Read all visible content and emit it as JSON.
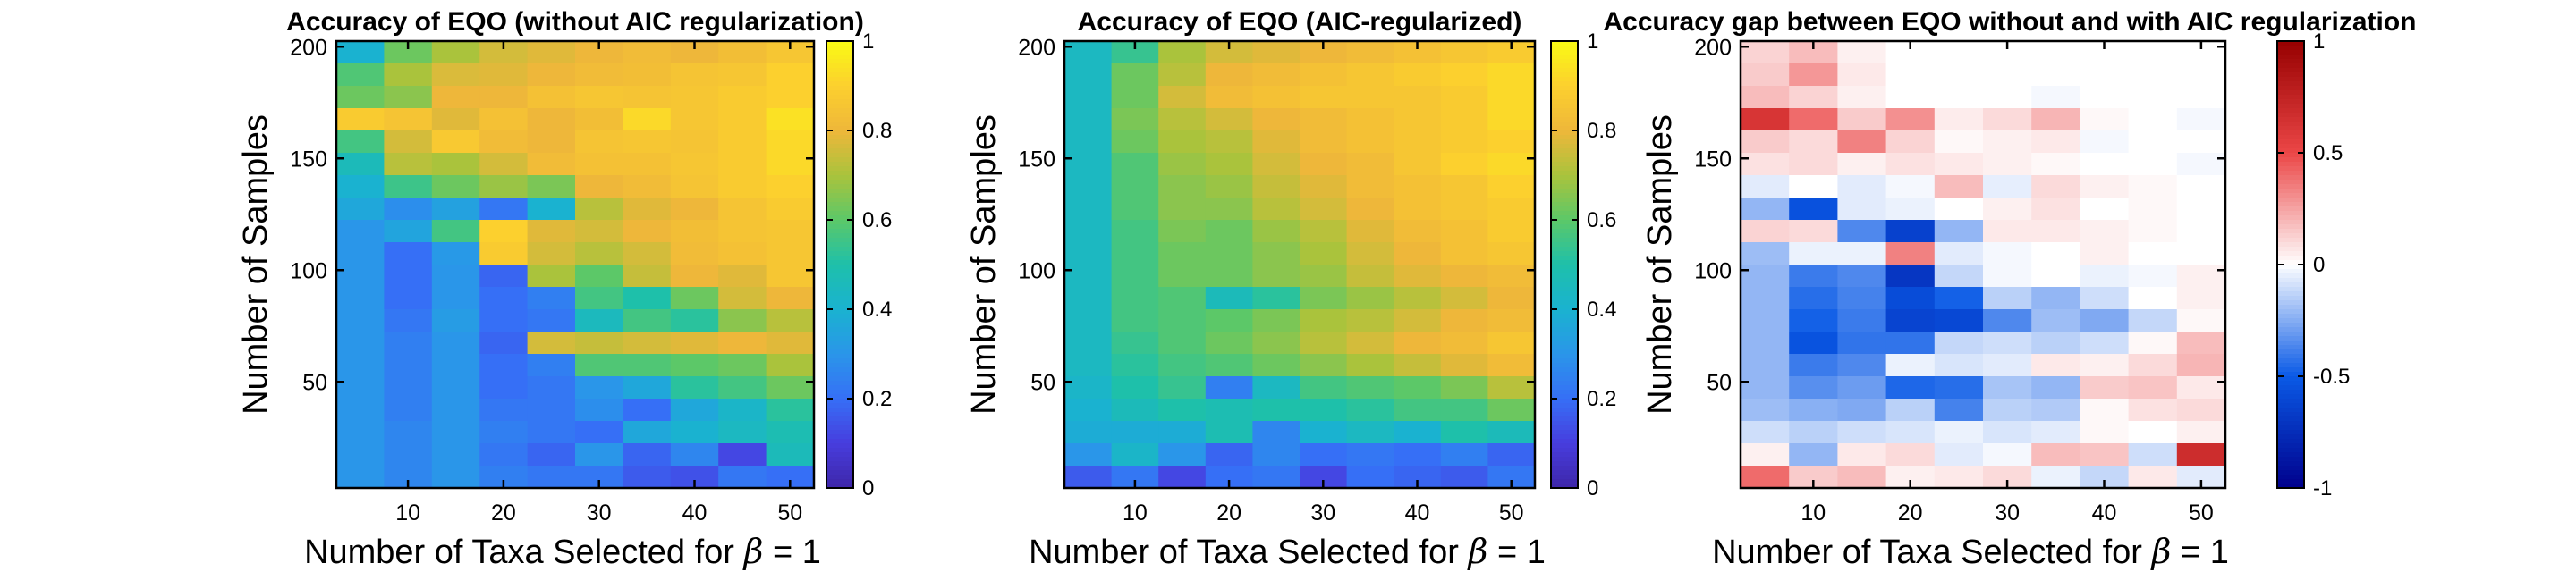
{
  "chart_data": [
    {
      "type": "heatmap",
      "title": "Accuracy of EQO (without AIC regularization)",
      "xlabel": "Number of Taxa Selected for",
      "xlabel_symbol": "β",
      "xlabel_suffix": " = 1",
      "ylabel": "Number of Samples",
      "x_ticks": [
        "10",
        "20",
        "30",
        "40",
        "50"
      ],
      "y_ticks": [
        "50",
        "100",
        "150",
        "200"
      ],
      "colorbar_ticks": [
        "0",
        "0.2",
        "0.4",
        "0.6",
        "0.8",
        "1"
      ],
      "colormap": "parula",
      "clim": [
        0,
        1
      ],
      "values": [
        [
          0.4,
          0.62,
          0.7,
          0.76,
          0.78,
          0.8,
          0.82,
          0.8,
          0.83,
          0.86
        ],
        [
          0.58,
          0.7,
          0.77,
          0.78,
          0.8,
          0.82,
          0.83,
          0.85,
          0.86,
          0.9
        ],
        [
          0.62,
          0.66,
          0.8,
          0.8,
          0.84,
          0.86,
          0.85,
          0.86,
          0.88,
          0.9
        ],
        [
          0.88,
          0.85,
          0.78,
          0.84,
          0.8,
          0.83,
          0.92,
          0.86,
          0.88,
          0.94
        ],
        [
          0.56,
          0.76,
          0.87,
          0.82,
          0.8,
          0.85,
          0.86,
          0.85,
          0.88,
          0.92
        ],
        [
          0.46,
          0.72,
          0.7,
          0.76,
          0.82,
          0.84,
          0.84,
          0.86,
          0.88,
          0.92
        ],
        [
          0.4,
          0.55,
          0.62,
          0.68,
          0.64,
          0.8,
          0.82,
          0.85,
          0.88,
          0.9
        ],
        [
          0.36,
          0.28,
          0.34,
          0.22,
          0.4,
          0.72,
          0.78,
          0.8,
          0.85,
          0.88
        ],
        [
          0.3,
          0.35,
          0.56,
          0.9,
          0.78,
          0.76,
          0.8,
          0.83,
          0.85,
          0.86
        ],
        [
          0.3,
          0.2,
          0.31,
          0.88,
          0.76,
          0.72,
          0.76,
          0.82,
          0.84,
          0.86
        ],
        [
          0.3,
          0.2,
          0.3,
          0.18,
          0.7,
          0.6,
          0.74,
          0.8,
          0.78,
          0.86
        ],
        [
          0.3,
          0.2,
          0.3,
          0.2,
          0.24,
          0.56,
          0.5,
          0.62,
          0.76,
          0.8
        ],
        [
          0.3,
          0.22,
          0.32,
          0.2,
          0.22,
          0.45,
          0.56,
          0.52,
          0.66,
          0.72
        ],
        [
          0.3,
          0.24,
          0.3,
          0.18,
          0.76,
          0.74,
          0.76,
          0.78,
          0.8,
          0.78
        ],
        [
          0.3,
          0.24,
          0.3,
          0.2,
          0.24,
          0.58,
          0.58,
          0.6,
          0.62,
          0.7
        ],
        [
          0.3,
          0.24,
          0.3,
          0.2,
          0.22,
          0.3,
          0.36,
          0.52,
          0.56,
          0.62
        ],
        [
          0.3,
          0.24,
          0.3,
          0.22,
          0.22,
          0.28,
          0.2,
          0.36,
          0.42,
          0.52
        ],
        [
          0.3,
          0.26,
          0.3,
          0.24,
          0.22,
          0.2,
          0.36,
          0.4,
          0.44,
          0.48
        ],
        [
          0.3,
          0.26,
          0.3,
          0.22,
          0.18,
          0.3,
          0.18,
          0.26,
          0.12,
          0.46
        ],
        [
          0.3,
          0.26,
          0.3,
          0.24,
          0.22,
          0.22,
          0.16,
          0.14,
          0.22,
          0.2
        ]
      ]
    },
    {
      "type": "heatmap",
      "title": "Accuracy of EQO (AIC-regularized)",
      "xlabel": "Number of Taxa Selected for",
      "xlabel_symbol": "β",
      "xlabel_suffix": " = 1",
      "ylabel": "Number of Samples",
      "x_ticks": [
        "10",
        "20",
        "30",
        "40",
        "50"
      ],
      "y_ticks": [
        "50",
        "100",
        "150",
        "200"
      ],
      "colorbar_ticks": [
        "0",
        "0.2",
        "0.4",
        "0.6",
        "0.8",
        "1"
      ],
      "colormap": "parula",
      "clim": [
        0,
        1
      ],
      "values": [
        [
          0.44,
          0.54,
          0.7,
          0.76,
          0.78,
          0.8,
          0.82,
          0.84,
          0.86,
          0.88
        ],
        [
          0.44,
          0.62,
          0.72,
          0.8,
          0.82,
          0.84,
          0.86,
          0.88,
          0.9,
          0.92
        ],
        [
          0.44,
          0.62,
          0.76,
          0.82,
          0.84,
          0.86,
          0.86,
          0.86,
          0.88,
          0.92
        ],
        [
          0.44,
          0.64,
          0.72,
          0.76,
          0.8,
          0.82,
          0.84,
          0.86,
          0.88,
          0.92
        ],
        [
          0.44,
          0.62,
          0.7,
          0.72,
          0.78,
          0.82,
          0.84,
          0.86,
          0.88,
          0.9
        ],
        [
          0.44,
          0.58,
          0.68,
          0.7,
          0.76,
          0.8,
          0.82,
          0.86,
          0.9,
          0.92
        ],
        [
          0.44,
          0.58,
          0.66,
          0.68,
          0.74,
          0.78,
          0.82,
          0.84,
          0.86,
          0.9
        ],
        [
          0.44,
          0.58,
          0.66,
          0.66,
          0.72,
          0.76,
          0.8,
          0.84,
          0.86,
          0.88
        ],
        [
          0.44,
          0.56,
          0.64,
          0.62,
          0.68,
          0.72,
          0.78,
          0.82,
          0.84,
          0.88
        ],
        [
          0.44,
          0.56,
          0.62,
          0.62,
          0.66,
          0.7,
          0.76,
          0.8,
          0.84,
          0.86
        ],
        [
          0.44,
          0.56,
          0.62,
          0.62,
          0.66,
          0.68,
          0.74,
          0.78,
          0.8,
          0.82
        ],
        [
          0.44,
          0.56,
          0.58,
          0.46,
          0.52,
          0.64,
          0.68,
          0.72,
          0.76,
          0.8
        ],
        [
          0.44,
          0.56,
          0.58,
          0.6,
          0.64,
          0.7,
          0.72,
          0.76,
          0.8,
          0.82
        ],
        [
          0.44,
          0.54,
          0.58,
          0.62,
          0.66,
          0.72,
          0.76,
          0.8,
          0.82,
          0.86
        ],
        [
          0.44,
          0.52,
          0.56,
          0.58,
          0.62,
          0.66,
          0.7,
          0.74,
          0.78,
          0.82
        ],
        [
          0.42,
          0.5,
          0.54,
          0.24,
          0.44,
          0.56,
          0.58,
          0.6,
          0.64,
          0.72
        ],
        [
          0.4,
          0.46,
          0.5,
          0.48,
          0.5,
          0.5,
          0.52,
          0.56,
          0.56,
          0.62
        ],
        [
          0.38,
          0.38,
          0.38,
          0.48,
          0.26,
          0.4,
          0.44,
          0.4,
          0.5,
          0.46
        ],
        [
          0.3,
          0.42,
          0.3,
          0.18,
          0.26,
          0.2,
          0.22,
          0.2,
          0.24,
          0.18
        ],
        [
          0.16,
          0.22,
          0.12,
          0.2,
          0.22,
          0.12,
          0.2,
          0.18,
          0.16,
          0.22
        ]
      ]
    },
    {
      "type": "heatmap",
      "title": "Accuracy gap between EQO without and with AIC regularization",
      "xlabel": "Number of Taxa Selected for",
      "xlabel_symbol": "β",
      "xlabel_suffix": " = 1",
      "ylabel": "Number of Samples",
      "x_ticks": [
        "10",
        "20",
        "30",
        "40",
        "50"
      ],
      "y_ticks": [
        "50",
        "100",
        "150",
        "200"
      ],
      "colorbar_ticks": [
        "1",
        "0.5",
        "0",
        "-0.5",
        "-1"
      ],
      "colormap": "blue-white-red",
      "clim": [
        -1,
        1
      ],
      "values": [
        [
          0.12,
          0.18,
          0.04,
          0.0,
          0.0,
          0.0,
          0.0,
          0.0,
          0.0,
          0.0
        ],
        [
          0.14,
          0.28,
          0.06,
          0.0,
          0.0,
          0.0,
          0.0,
          0.0,
          0.0,
          0.0
        ],
        [
          0.18,
          0.12,
          0.04,
          0.0,
          0.0,
          0.0,
          -0.02,
          0.0,
          0.0,
          0.0
        ],
        [
          0.62,
          0.4,
          0.14,
          0.3,
          0.05,
          0.1,
          0.2,
          0.02,
          0.0,
          -0.02
        ],
        [
          0.14,
          0.1,
          0.34,
          0.12,
          0.02,
          0.04,
          0.06,
          -0.02,
          0.0,
          0.0
        ],
        [
          0.08,
          0.1,
          0.04,
          0.08,
          0.06,
          0.04,
          0.02,
          0.0,
          0.0,
          -0.02
        ],
        [
          -0.06,
          0.0,
          -0.06,
          -0.02,
          0.18,
          -0.05,
          0.1,
          0.04,
          0.02,
          0.0
        ],
        [
          -0.22,
          -0.55,
          -0.06,
          -0.04,
          0.0,
          0.04,
          0.08,
          0.0,
          0.02,
          0.0
        ],
        [
          0.12,
          0.1,
          -0.36,
          -0.64,
          -0.22,
          0.06,
          0.06,
          0.04,
          0.02,
          0.0
        ],
        [
          -0.2,
          -0.04,
          -0.04,
          0.34,
          -0.06,
          -0.02,
          0.0,
          0.04,
          0.0,
          0.0
        ],
        [
          -0.22,
          -0.4,
          -0.36,
          -0.7,
          -0.12,
          -0.02,
          0.0,
          -0.04,
          -0.02,
          0.04
        ],
        [
          -0.22,
          -0.44,
          -0.38,
          -0.58,
          -0.48,
          -0.14,
          -0.22,
          -0.1,
          0.0,
          0.04
        ],
        [
          -0.22,
          -0.48,
          -0.4,
          -0.62,
          -0.6,
          -0.36,
          -0.2,
          -0.26,
          -0.12,
          0.02
        ],
        [
          -0.22,
          -0.54,
          -0.42,
          -0.42,
          -0.12,
          -0.1,
          -0.14,
          -0.1,
          0.02,
          0.18
        ],
        [
          -0.22,
          -0.4,
          -0.36,
          -0.04,
          -0.08,
          -0.06,
          0.06,
          0.04,
          0.1,
          0.2
        ],
        [
          -0.22,
          -0.34,
          -0.3,
          -0.46,
          -0.44,
          -0.18,
          -0.22,
          0.14,
          0.16,
          0.06
        ],
        [
          -0.2,
          -0.24,
          -0.26,
          -0.14,
          -0.38,
          -0.14,
          -0.16,
          0.02,
          0.08,
          0.1
        ],
        [
          -0.1,
          -0.14,
          -0.1,
          -0.08,
          -0.04,
          -0.08,
          -0.06,
          0.02,
          0.0,
          0.04
        ],
        [
          0.04,
          -0.22,
          0.06,
          0.1,
          -0.06,
          -0.02,
          0.18,
          0.16,
          -0.1,
          0.68
        ],
        [
          0.4,
          0.14,
          0.18,
          0.04,
          0.06,
          0.1,
          -0.04,
          -0.12,
          0.06,
          -0.06
        ]
      ]
    }
  ]
}
